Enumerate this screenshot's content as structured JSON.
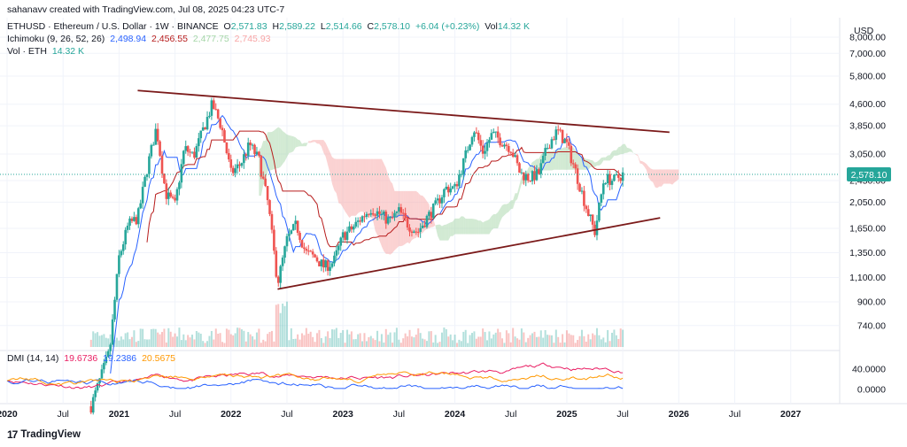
{
  "header": {
    "credit": "sahanavv created with TradingView.com, Jul 08, 2025 04:23 UTC-7",
    "symbol": "ETHUSD · Ethereum / U.S. Dollar · 1W · BINANCE",
    "o_label": "O",
    "o_value": "2,571.83",
    "h_label": "H",
    "h_value": "2,589.22",
    "l_label": "L",
    "l_value": "2,514.66",
    "c_label": "C",
    "c_value": "2,578.10",
    "change": "+6.04 (+0.23%)",
    "vol_label": "Vol",
    "vol_value": "14.32 K",
    "ichimoku_label": "Ichimoku (9, 26, 52, 26)",
    "ichimoku_values": [
      "2,498.94",
      "2,456.55",
      "2,477.75",
      "2,745.93"
    ],
    "vol_eth_label": "Vol · ETH",
    "vol_eth_value": "14.32 K"
  },
  "currency": "USD",
  "footer": {
    "brand": "TradingView"
  },
  "colors": {
    "up": "#26a69a",
    "down": "#ef5350",
    "tenkan": "#2962ff",
    "kijun": "#b71c1c",
    "trendline": "#7b1a1a",
    "cloud_bull": "#a5d6a7",
    "cloud_bear": "#f8a5a5",
    "dmi_adx": "#ff9800",
    "dmi_plus": "#2962ff",
    "dmi_minus": "#e91e63",
    "last_price_bg": "#26a69a",
    "ichimoku_vals": [
      "#2962ff",
      "#b71c1c",
      "#a5d6a7",
      "#f8a5a5"
    ]
  },
  "chart_data": [
    {
      "type": "candlestick",
      "title": "ETHUSD · Ethereum / U.S. Dollar · 1W · BINANCE",
      "scale": "log",
      "price_ticks": [
        "8,000.00",
        "7,000.00",
        "5,800.00",
        "4,600.00",
        "3,850.00",
        "3,050.00",
        "2,450.00",
        "2,050.00",
        "1,650.00",
        "1,350.00",
        "1,100.00",
        "900.00",
        "740.00"
      ],
      "price_tick_values": [
        8000,
        7000,
        5800,
        4600,
        3850,
        3050,
        2450,
        2050,
        1650,
        1350,
        1100,
        900,
        740
      ],
      "time_ticks": [
        "2020",
        "Jul",
        "2021",
        "Jul",
        "2022",
        "Jul",
        "2023",
        "Jul",
        "2024",
        "Jul",
        "2025",
        "Jul",
        "2026",
        "Jul",
        "2027"
      ],
      "bold_ticks": [
        "2020",
        "2021",
        "2022",
        "2023",
        "2024",
        "2025",
        "2026",
        "2027"
      ],
      "last_price": "2,578.10",
      "price_path": [
        [
          "2020-10",
          380
        ],
        [
          "2020-12",
          600
        ],
        [
          "2021-01",
          1300
        ],
        [
          "2021-02",
          1700
        ],
        [
          "2021-03",
          1800
        ],
        [
          "2021-04",
          2700
        ],
        [
          "2021-05",
          3800
        ],
        [
          "2021-06",
          2200
        ],
        [
          "2021-07",
          2000
        ],
        [
          "2021-08",
          3200
        ],
        [
          "2021-09",
          3000
        ],
        [
          "2021-11",
          4600
        ],
        [
          "2021-12",
          3800
        ],
        [
          "2022-01",
          2600
        ],
        [
          "2022-02",
          2800
        ],
        [
          "2022-03",
          3300
        ],
        [
          "2022-04",
          2900
        ],
        [
          "2022-05",
          2000
        ],
        [
          "2022-06",
          1050
        ],
        [
          "2022-07",
          1500
        ],
        [
          "2022-08",
          1700
        ],
        [
          "2022-09",
          1350
        ],
        [
          "2022-10",
          1300
        ],
        [
          "2022-11",
          1200
        ],
        [
          "2022-12",
          1250
        ],
        [
          "2023-01",
          1550
        ],
        [
          "2023-02",
          1650
        ],
        [
          "2023-03",
          1800
        ],
        [
          "2023-04",
          1950
        ],
        [
          "2023-05",
          1850
        ],
        [
          "2023-06",
          1750
        ],
        [
          "2023-07",
          1900
        ],
        [
          "2023-08",
          1700
        ],
        [
          "2023-09",
          1600
        ],
        [
          "2023-10",
          1800
        ],
        [
          "2023-11",
          2000
        ],
        [
          "2023-12",
          2300
        ],
        [
          "2024-01",
          2300
        ],
        [
          "2024-02",
          2900
        ],
        [
          "2024-03",
          3800
        ],
        [
          "2024-04",
          3100
        ],
        [
          "2024-05",
          3600
        ],
        [
          "2024-06",
          3400
        ],
        [
          "2024-07",
          3200
        ],
        [
          "2024-08",
          2600
        ],
        [
          "2024-09",
          2500
        ],
        [
          "2024-10",
          2600
        ],
        [
          "2024-11",
          3300
        ],
        [
          "2024-12",
          3700
        ],
        [
          "2025-01",
          3300
        ],
        [
          "2025-02",
          2600
        ],
        [
          "2025-03",
          2000
        ],
        [
          "2025-04",
          1600
        ],
        [
          "2025-05",
          2500
        ],
        [
          "2025-06",
          2450
        ],
        [
          "2025-07",
          2578.1
        ]
      ],
      "trendlines": [
        {
          "name": "upper",
          "from": [
            "2021-03",
            5150
          ],
          "to": [
            "2025-12",
            3650
          ]
        },
        {
          "name": "lower",
          "from": [
            "2022-06",
            1000
          ],
          "to": [
            "2025-11",
            1800
          ]
        }
      ]
    },
    {
      "type": "line",
      "title": "DMI (14, 14)",
      "values_label": [
        "19.6736",
        "19.2386",
        "20.5675"
      ],
      "ticks": [
        "40.0000",
        "0.0000"
      ],
      "tick_values": [
        40,
        0
      ],
      "series": [
        {
          "name": "",
          "color_key": "dmi_minus"
        },
        {
          "name": "",
          "color_key": "dmi_plus"
        },
        {
          "name": "",
          "color_key": "dmi_adx"
        }
      ]
    }
  ]
}
